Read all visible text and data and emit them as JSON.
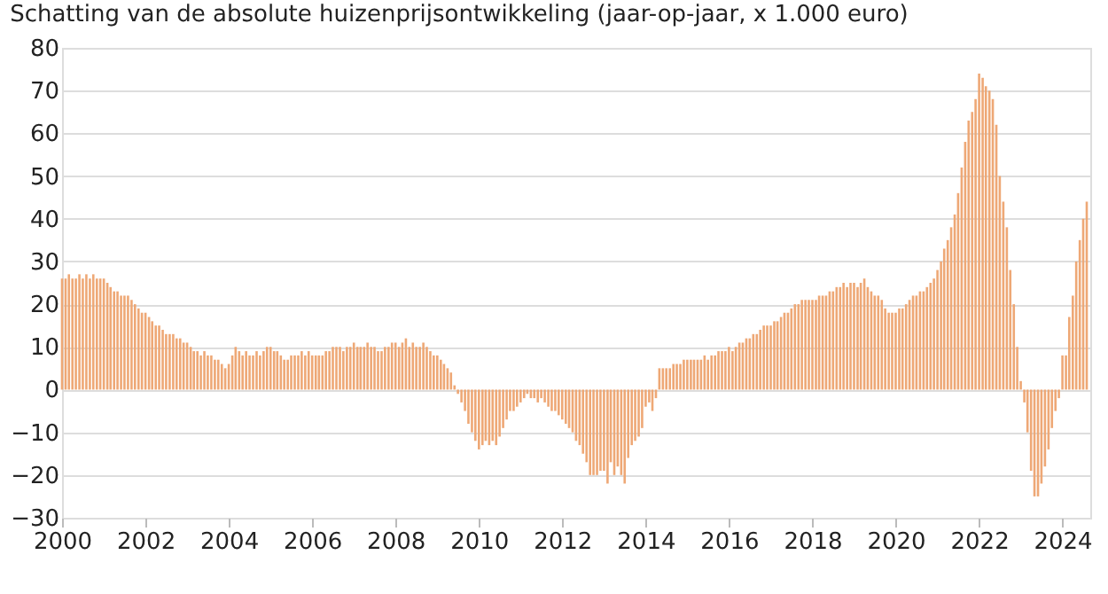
{
  "chart_data": {
    "type": "bar",
    "title": "Schatting van de absolute huizenprijsontwikkeling (jaar-op-jaar, x 1.000 euro)",
    "x": [
      "2000-01",
      "2000-02",
      "2000-03",
      "2000-04",
      "2000-05",
      "2000-06",
      "2000-07",
      "2000-08",
      "2000-09",
      "2000-10",
      "2000-11",
      "2000-12",
      "2001-01",
      "2001-02",
      "2001-03",
      "2001-04",
      "2001-05",
      "2001-06",
      "2001-07",
      "2001-08",
      "2001-09",
      "2001-10",
      "2001-11",
      "2001-12",
      "2002-01",
      "2002-02",
      "2002-03",
      "2002-04",
      "2002-05",
      "2002-06",
      "2002-07",
      "2002-08",
      "2002-09",
      "2002-10",
      "2002-11",
      "2002-12",
      "2003-01",
      "2003-02",
      "2003-03",
      "2003-04",
      "2003-05",
      "2003-06",
      "2003-07",
      "2003-08",
      "2003-09",
      "2003-10",
      "2003-11",
      "2003-12",
      "2004-01",
      "2004-02",
      "2004-03",
      "2004-04",
      "2004-05",
      "2004-06",
      "2004-07",
      "2004-08",
      "2004-09",
      "2004-10",
      "2004-11",
      "2004-12",
      "2005-01",
      "2005-02",
      "2005-03",
      "2005-04",
      "2005-05",
      "2005-06",
      "2005-07",
      "2005-08",
      "2005-09",
      "2005-10",
      "2005-11",
      "2005-12",
      "2006-01",
      "2006-02",
      "2006-03",
      "2006-04",
      "2006-05",
      "2006-06",
      "2006-07",
      "2006-08",
      "2006-09",
      "2006-10",
      "2006-11",
      "2006-12",
      "2007-01",
      "2007-02",
      "2007-03",
      "2007-04",
      "2007-05",
      "2007-06",
      "2007-07",
      "2007-08",
      "2007-09",
      "2007-10",
      "2007-11",
      "2007-12",
      "2008-01",
      "2008-02",
      "2008-03",
      "2008-04",
      "2008-05",
      "2008-06",
      "2008-07",
      "2008-08",
      "2008-09",
      "2008-10",
      "2008-11",
      "2008-12",
      "2009-01",
      "2009-02",
      "2009-03",
      "2009-04",
      "2009-05",
      "2009-06",
      "2009-07",
      "2009-08",
      "2009-09",
      "2009-10",
      "2009-11",
      "2009-12",
      "2010-01",
      "2010-02",
      "2010-03",
      "2010-04",
      "2010-05",
      "2010-06",
      "2010-07",
      "2010-08",
      "2010-09",
      "2010-10",
      "2010-11",
      "2010-12",
      "2011-01",
      "2011-02",
      "2011-03",
      "2011-04",
      "2011-05",
      "2011-06",
      "2011-07",
      "2011-08",
      "2011-09",
      "2011-10",
      "2011-11",
      "2011-12",
      "2012-01",
      "2012-02",
      "2012-03",
      "2012-04",
      "2012-05",
      "2012-06",
      "2012-07",
      "2012-08",
      "2012-09",
      "2012-10",
      "2012-11",
      "2012-12",
      "2013-01",
      "2013-02",
      "2013-03",
      "2013-04",
      "2013-05",
      "2013-06",
      "2013-07",
      "2013-08",
      "2013-09",
      "2013-10",
      "2013-11",
      "2013-12",
      "2014-01",
      "2014-02",
      "2014-03",
      "2014-04",
      "2014-05",
      "2014-06",
      "2014-07",
      "2014-08",
      "2014-09",
      "2014-10",
      "2014-11",
      "2014-12",
      "2015-01",
      "2015-02",
      "2015-03",
      "2015-04",
      "2015-05",
      "2015-06",
      "2015-07",
      "2015-08",
      "2015-09",
      "2015-10",
      "2015-11",
      "2015-12",
      "2016-01",
      "2016-02",
      "2016-03",
      "2016-04",
      "2016-05",
      "2016-06",
      "2016-07",
      "2016-08",
      "2016-09",
      "2016-10",
      "2016-11",
      "2016-12",
      "2017-01",
      "2017-02",
      "2017-03",
      "2017-04",
      "2017-05",
      "2017-06",
      "2017-07",
      "2017-08",
      "2017-09",
      "2017-10",
      "2017-11",
      "2017-12",
      "2018-01",
      "2018-02",
      "2018-03",
      "2018-04",
      "2018-05",
      "2018-06",
      "2018-07",
      "2018-08",
      "2018-09",
      "2018-10",
      "2018-11",
      "2018-12",
      "2019-01",
      "2019-02",
      "2019-03",
      "2019-04",
      "2019-05",
      "2019-06",
      "2019-07",
      "2019-08",
      "2019-09",
      "2019-10",
      "2019-11",
      "2019-12",
      "2020-01",
      "2020-02",
      "2020-03",
      "2020-04",
      "2020-05",
      "2020-06",
      "2020-07",
      "2020-08",
      "2020-09",
      "2020-10",
      "2020-11",
      "2020-12",
      "2021-01",
      "2021-02",
      "2021-03",
      "2021-04",
      "2021-05",
      "2021-06",
      "2021-07",
      "2021-08",
      "2021-09",
      "2021-10",
      "2021-11",
      "2021-12",
      "2022-01",
      "2022-02",
      "2022-03",
      "2022-04",
      "2022-05",
      "2022-06",
      "2022-07",
      "2022-08",
      "2022-09",
      "2022-10",
      "2022-11",
      "2022-12",
      "2023-01",
      "2023-02",
      "2023-03",
      "2023-04",
      "2023-05",
      "2023-06",
      "2023-07",
      "2023-08",
      "2023-09",
      "2023-10",
      "2023-11",
      "2023-12",
      "2024-01",
      "2024-02",
      "2024-03",
      "2024-04",
      "2024-05",
      "2024-06",
      "2024-07",
      "2024-08"
    ],
    "series": [
      {
        "color": "#eda36f",
        "values": [
          26,
          26,
          27,
          26,
          26,
          27,
          26,
          27,
          26,
          27,
          26,
          26,
          26,
          25,
          24,
          23,
          23,
          22,
          22,
          22,
          21,
          20,
          19,
          18,
          18,
          17,
          16,
          15,
          15,
          14,
          13,
          13,
          13,
          12,
          12,
          11,
          11,
          10,
          9,
          9,
          8,
          9,
          8,
          8,
          7,
          7,
          6,
          5,
          6,
          8,
          10,
          9,
          8,
          9,
          8,
          8,
          9,
          8,
          9,
          10,
          10,
          9,
          9,
          8,
          7,
          7,
          8,
          8,
          8,
          9,
          8,
          9,
          8,
          8,
          8,
          8,
          9,
          9,
          10,
          10,
          10,
          9,
          10,
          10,
          11,
          10,
          10,
          10,
          11,
          10,
          10,
          9,
          9,
          10,
          10,
          11,
          11,
          10,
          11,
          12,
          10,
          11,
          10,
          10,
          11,
          10,
          9,
          8,
          8,
          7,
          6,
          5,
          4,
          1,
          -1,
          -3,
          -5,
          -8,
          -10,
          -12,
          -14,
          -13,
          -12,
          -13,
          -12,
          -13,
          -11,
          -9,
          -7,
          -5,
          -5,
          -4,
          -3,
          -2,
          -1,
          -2,
          -2,
          -3,
          -2,
          -3,
          -4,
          -5,
          -5,
          -6,
          -7,
          -8,
          -9,
          -10,
          -12,
          -13,
          -15,
          -17,
          -20,
          -20,
          -20,
          -19,
          -19,
          -22,
          -17,
          -20,
          -18,
          -20,
          -22,
          -16,
          -13,
          -12,
          -11,
          -9,
          -4,
          -3,
          -5,
          -2,
          5,
          5,
          5,
          5,
          6,
          6,
          6,
          7,
          7,
          7,
          7,
          7,
          7,
          8,
          7,
          8,
          8,
          9,
          9,
          9,
          10,
          9,
          10,
          11,
          11,
          12,
          12,
          13,
          13,
          14,
          15,
          15,
          15,
          16,
          16,
          17,
          18,
          18,
          19,
          20,
          20,
          21,
          21,
          21,
          21,
          21,
          22,
          22,
          22,
          23,
          23,
          24,
          24,
          25,
          24,
          25,
          25,
          24,
          25,
          26,
          24,
          23,
          22,
          22,
          21,
          19,
          18,
          18,
          18,
          19,
          19,
          20,
          21,
          22,
          22,
          23,
          23,
          24,
          25,
          26,
          28,
          30,
          33,
          35,
          38,
          41,
          46,
          52,
          58,
          63,
          65,
          68,
          74,
          73,
          71,
          70,
          68,
          62,
          50,
          44,
          38,
          28,
          20,
          10,
          2,
          -3,
          -10,
          -19,
          -25,
          -25,
          -22,
          -18,
          -14,
          -9,
          -5,
          -2,
          8,
          8,
          17,
          22,
          30,
          35,
          40,
          44
        ]
      }
    ],
    "xlim": [
      "2000-01",
      "2024-09"
    ],
    "xticks": [
      "2000",
      "2002",
      "2004",
      "2006",
      "2008",
      "2010",
      "2012",
      "2014",
      "2016",
      "2018",
      "2020",
      "2022",
      "2024"
    ],
    "ylim": [
      -30,
      80
    ],
    "yticks": [
      -30,
      -20,
      -10,
      0,
      10,
      20,
      30,
      40,
      50,
      60,
      70,
      80
    ],
    "grid": "y"
  }
}
